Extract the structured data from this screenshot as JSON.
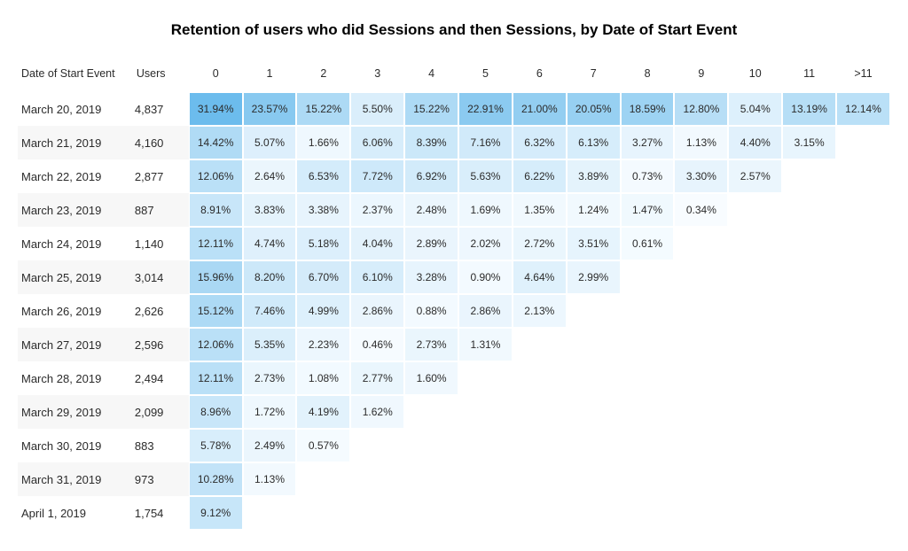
{
  "title": "Retention of users who did Sessions and then Sessions, by Date of Start Event",
  "headers": {
    "date": "Date of Start Event",
    "users": "Users",
    "periods": [
      "0",
      "1",
      "2",
      "3",
      "4",
      "5",
      "6",
      "7",
      "8",
      "9",
      "10",
      "11",
      ">11"
    ]
  },
  "rows": [
    {
      "date": "March 20, 2019",
      "users": "4,837",
      "cells": [
        31.94,
        23.57,
        15.22,
        5.5,
        15.22,
        22.91,
        21.0,
        20.05,
        18.59,
        12.8,
        5.04,
        13.19,
        12.14
      ]
    },
    {
      "date": "March 21, 2019",
      "users": "4,160",
      "cells": [
        14.42,
        5.07,
        1.66,
        6.06,
        8.39,
        7.16,
        6.32,
        6.13,
        3.27,
        1.13,
        4.4,
        3.15
      ]
    },
    {
      "date": "March 22, 2019",
      "users": "2,877",
      "cells": [
        12.06,
        2.64,
        6.53,
        7.72,
        6.92,
        5.63,
        6.22,
        3.89,
        0.73,
        3.3,
        2.57
      ]
    },
    {
      "date": "March 23, 2019",
      "users": "887",
      "cells": [
        8.91,
        3.83,
        3.38,
        2.37,
        2.48,
        1.69,
        1.35,
        1.24,
        1.47,
        0.34
      ]
    },
    {
      "date": "March 24, 2019",
      "users": "1,140",
      "cells": [
        12.11,
        4.74,
        5.18,
        4.04,
        2.89,
        2.02,
        2.72,
        3.51,
        0.61
      ]
    },
    {
      "date": "March 25, 2019",
      "users": "3,014",
      "cells": [
        15.96,
        8.2,
        6.7,
        6.1,
        3.28,
        0.9,
        4.64,
        2.99
      ]
    },
    {
      "date": "March 26, 2019",
      "users": "2,626",
      "cells": [
        15.12,
        7.46,
        4.99,
        2.86,
        0.88,
        2.86,
        2.13
      ]
    },
    {
      "date": "March 27, 2019",
      "users": "2,596",
      "cells": [
        12.06,
        5.35,
        2.23,
        0.46,
        2.73,
        1.31
      ]
    },
    {
      "date": "March 28, 2019",
      "users": "2,494",
      "cells": [
        12.11,
        2.73,
        1.08,
        2.77,
        1.6
      ]
    },
    {
      "date": "March 29, 2019",
      "users": "2,099",
      "cells": [
        8.96,
        1.72,
        4.19,
        1.62
      ]
    },
    {
      "date": "March 30, 2019",
      "users": "883",
      "cells": [
        5.78,
        2.49,
        0.57
      ]
    },
    {
      "date": "March 31, 2019",
      "users": "973",
      "cells": [
        10.28,
        1.13
      ]
    },
    {
      "date": "April 1, 2019",
      "users": "1,754",
      "cells": [
        9.12
      ]
    }
  ],
  "style": {
    "type": "cohort-retention-heatmap",
    "background_color": "#ffffff",
    "title_fontsize": 17,
    "cell_fontsize": 12,
    "header_fontsize": 12.5,
    "row_alt_bg": "#f7f7f7",
    "text_color": "#2b2b2b",
    "heat_scale": {
      "base": "#ffffff",
      "palette": "lightblue",
      "stops": [
        {
          "v": 0,
          "color": "#ffffff"
        },
        {
          "v": 0.5,
          "color": "#f5fbff"
        },
        {
          "v": 3,
          "color": "#e9f5fd"
        },
        {
          "v": 6,
          "color": "#d7edfb"
        },
        {
          "v": 10,
          "color": "#c3e4f8"
        },
        {
          "v": 15,
          "color": "#aedaf5"
        },
        {
          "v": 20,
          "color": "#97d0f2"
        },
        {
          "v": 25,
          "color": "#82c6ef"
        },
        {
          "v": 32,
          "color": "#6cbced"
        }
      ]
    },
    "col_widths": {
      "date": 130,
      "users": 60,
      "period": 60
    }
  }
}
